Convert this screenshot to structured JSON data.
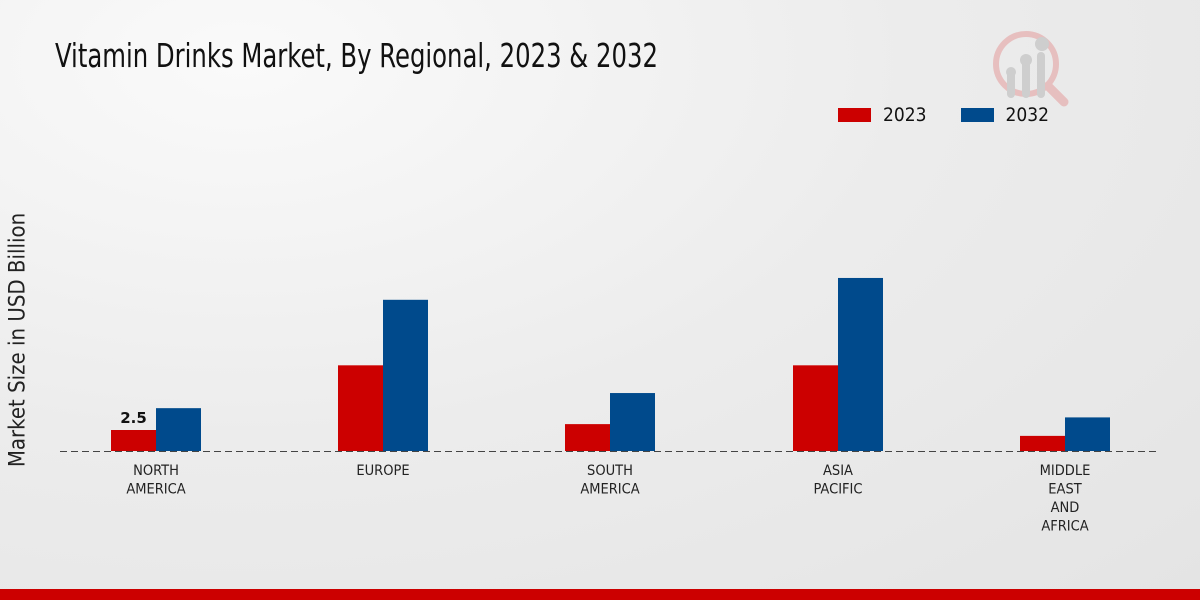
{
  "chart_data": {
    "type": "bar",
    "title": "Vitamin Drinks Market, By Regional, 2023 & 2032",
    "xlabel": "",
    "ylabel": "Market Size in USD Billion",
    "categories": [
      [
        "NORTH",
        "AMERICA"
      ],
      [
        "EUROPE"
      ],
      [
        "SOUTH",
        "AMERICA"
      ],
      [
        "ASIA",
        "PACIFIC"
      ],
      [
        "MIDDLE",
        "EAST",
        "AND",
        "AFRICA"
      ]
    ],
    "series": [
      {
        "name": "2023",
        "color": "#cc0000",
        "values": [
          2.5,
          10.2,
          3.2,
          10.2,
          1.8
        ]
      },
      {
        "name": "2032",
        "color": "#004a8c",
        "values": [
          5.1,
          18.0,
          6.9,
          20.6,
          4.0
        ]
      }
    ],
    "data_labels": [
      {
        "series": "2023",
        "category_index": 0,
        "text": "2.5"
      }
    ],
    "ylim": [
      0,
      30
    ],
    "grid": false,
    "legend_position": "top-right"
  }
}
